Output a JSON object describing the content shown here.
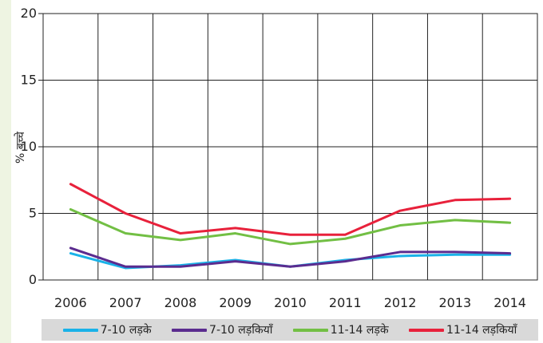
{
  "chart_data": {
    "type": "line",
    "title": "",
    "xlabel": "",
    "ylabel": "% बच्चे",
    "x": [
      2006,
      2007,
      2008,
      2009,
      2010,
      2011,
      2012,
      2013,
      2014
    ],
    "x_tick_labels": [
      "2006",
      "2007",
      "2008",
      "2009",
      "2010",
      "2011",
      "2012",
      "2013",
      "2014"
    ],
    "ylim": [
      0,
      20
    ],
    "y_ticks": [
      0,
      5,
      10,
      15,
      20
    ],
    "y_tick_labels": [
      "0",
      "5",
      "10",
      "15",
      "20"
    ],
    "grid": true,
    "legend_placement": "bottom",
    "series": [
      {
        "name": "7-10 लड़के",
        "color": "#1ab2e8",
        "values": [
          2.0,
          0.9,
          1.1,
          1.5,
          1.0,
          1.5,
          1.8,
          1.9,
          1.9
        ]
      },
      {
        "name": "7-10 लड़कियाँ",
        "color": "#5b2c8f",
        "values": [
          2.4,
          1.0,
          1.0,
          1.4,
          1.0,
          1.4,
          2.1,
          2.1,
          2.0
        ]
      },
      {
        "name": "11-14 लड़के",
        "color": "#72bf44",
        "values": [
          5.3,
          3.5,
          3.0,
          3.5,
          2.7,
          3.1,
          4.1,
          4.5,
          4.3
        ]
      },
      {
        "name": "11-14 लड़कियाँ",
        "color": "#e8213b",
        "values": [
          7.2,
          5.0,
          3.5,
          3.9,
          3.4,
          3.4,
          5.2,
          6.0,
          6.1
        ]
      }
    ]
  }
}
